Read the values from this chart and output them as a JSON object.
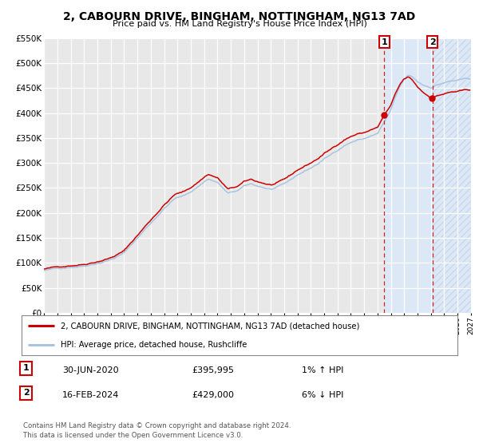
{
  "title": "2, CABOURN DRIVE, BINGHAM, NOTTINGHAM, NG13 7AD",
  "subtitle": "Price paid vs. HM Land Registry's House Price Index (HPI)",
  "legend_line1": "2, CABOURN DRIVE, BINGHAM, NOTTINGHAM, NG13 7AD (detached house)",
  "legend_line2": "HPI: Average price, detached house, Rushcliffe",
  "annotation1_label": "1",
  "annotation1_date": "30-JUN-2020",
  "annotation1_price": "£395,995",
  "annotation1_hpi": "1% ↑ HPI",
  "annotation2_label": "2",
  "annotation2_date": "16-FEB-2024",
  "annotation2_price": "£429,000",
  "annotation2_hpi": "6% ↓ HPI",
  "footer": "Contains HM Land Registry data © Crown copyright and database right 2024.\nThis data is licensed under the Open Government Licence v3.0.",
  "sale1_year": 2020.5,
  "sale1_value": 395995,
  "sale2_year": 2024.12,
  "sale2_value": 429000,
  "hpi_color": "#a8c4e0",
  "price_color": "#cc0000",
  "bg_color": "#ffffff",
  "plot_bg_color": "#e8e8e8",
  "highlight_bg": "#dce8f5",
  "grid_color": "#ffffff",
  "ylim_max": 550000,
  "ylim_min": 0,
  "xmin": 1995,
  "xmax": 2027
}
